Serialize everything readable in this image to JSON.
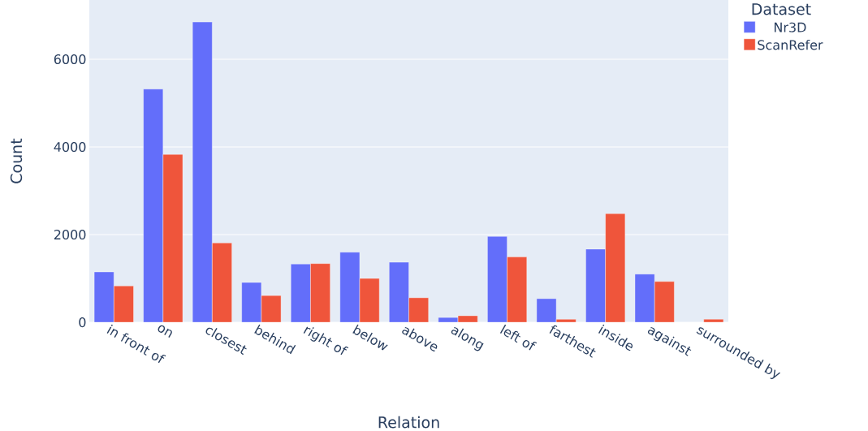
{
  "chart_data": {
    "type": "bar",
    "xlabel": "Relation",
    "ylabel": "Count",
    "legend_title": "Dataset",
    "categories": [
      "in front of",
      "on",
      "closest",
      "behind",
      "right of",
      "below",
      "above",
      "along",
      "left of",
      "farthest",
      "inside",
      "against",
      "surrounded by"
    ],
    "series": [
      {
        "name": "Nr3D",
        "color": "#636efa",
        "values": [
          1150,
          5320,
          6850,
          910,
          1330,
          1600,
          1370,
          110,
          1960,
          540,
          1670,
          1100,
          null
        ]
      },
      {
        "name": "ScanRefer",
        "color": "#ef553b",
        "values": [
          830,
          3830,
          1810,
          610,
          1340,
          1000,
          560,
          150,
          1490,
          70,
          2480,
          930,
          70
        ]
      }
    ],
    "ylim": [
      0,
      7350
    ],
    "yticks": [
      0,
      2000,
      4000,
      6000
    ],
    "grid": "y",
    "legend": "top right"
  }
}
